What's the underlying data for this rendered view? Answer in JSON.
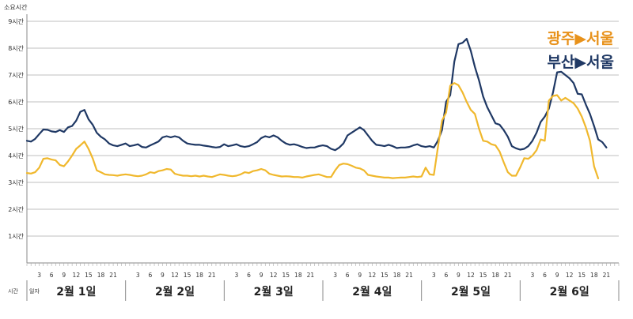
{
  "chart_data": {
    "type": "line",
    "ylabel": "소요시간",
    "y_ticks": [
      "1시간",
      "2시간",
      "3시간",
      "4시간",
      "5시간",
      "6시간",
      "7시간",
      "8시간",
      "9시간"
    ],
    "ylim": [
      0,
      9
    ],
    "row_labels": {
      "hour": "시간",
      "day": "일자"
    },
    "hour_ticks": [
      "3",
      "6",
      "9",
      "12",
      "15",
      "18",
      "21"
    ],
    "days": [
      "2월 1일",
      "2월 2일",
      "2월 3일",
      "2월 4일",
      "2월 5일",
      "2월 6일"
    ],
    "x_unit": "hours from 2월 1일 00시",
    "grid": true,
    "legend_position": "top-right",
    "series": [
      {
        "name": "부산▶서울",
        "color": "#1f3864",
        "points": [
          [
            0,
            4.55
          ],
          [
            1,
            4.52
          ],
          [
            2,
            4.62
          ],
          [
            3,
            4.8
          ],
          [
            4,
            4.97
          ],
          [
            5,
            4.96
          ],
          [
            6,
            4.9
          ],
          [
            7,
            4.88
          ],
          [
            8,
            4.95
          ],
          [
            9,
            4.88
          ],
          [
            10,
            5.05
          ],
          [
            11,
            5.1
          ],
          [
            12,
            5.3
          ],
          [
            13,
            5.63
          ],
          [
            14,
            5.7
          ],
          [
            15,
            5.35
          ],
          [
            16,
            5.15
          ],
          [
            17,
            4.85
          ],
          [
            18,
            4.7
          ],
          [
            19,
            4.6
          ],
          [
            20,
            4.45
          ],
          [
            21,
            4.38
          ],
          [
            22,
            4.35
          ],
          [
            23,
            4.4
          ],
          [
            24,
            4.45
          ],
          [
            25,
            4.35
          ],
          [
            26,
            4.38
          ],
          [
            27,
            4.42
          ],
          [
            28,
            4.32
          ],
          [
            29,
            4.3
          ],
          [
            30,
            4.38
          ],
          [
            31,
            4.45
          ],
          [
            32,
            4.52
          ],
          [
            33,
            4.68
          ],
          [
            34,
            4.72
          ],
          [
            35,
            4.68
          ],
          [
            36,
            4.72
          ],
          [
            37,
            4.68
          ],
          [
            38,
            4.55
          ],
          [
            39,
            4.45
          ],
          [
            40,
            4.42
          ],
          [
            41,
            4.4
          ],
          [
            42,
            4.4
          ],
          [
            43,
            4.37
          ],
          [
            44,
            4.35
          ],
          [
            45,
            4.32
          ],
          [
            46,
            4.3
          ],
          [
            47,
            4.32
          ],
          [
            48,
            4.42
          ],
          [
            49,
            4.35
          ],
          [
            50,
            4.38
          ],
          [
            51,
            4.42
          ],
          [
            52,
            4.35
          ],
          [
            53,
            4.32
          ],
          [
            54,
            4.35
          ],
          [
            55,
            4.42
          ],
          [
            56,
            4.5
          ],
          [
            57,
            4.65
          ],
          [
            58,
            4.72
          ],
          [
            59,
            4.68
          ],
          [
            60,
            4.75
          ],
          [
            61,
            4.68
          ],
          [
            62,
            4.55
          ],
          [
            63,
            4.45
          ],
          [
            64,
            4.4
          ],
          [
            65,
            4.42
          ],
          [
            66,
            4.38
          ],
          [
            67,
            4.32
          ],
          [
            68,
            4.28
          ],
          [
            69,
            4.3
          ],
          [
            70,
            4.3
          ],
          [
            71,
            4.35
          ],
          [
            72,
            4.38
          ],
          [
            73,
            4.35
          ],
          [
            74,
            4.25
          ],
          [
            75,
            4.2
          ],
          [
            76,
            4.3
          ],
          [
            77,
            4.45
          ],
          [
            78,
            4.75
          ],
          [
            79,
            4.85
          ],
          [
            80,
            4.95
          ],
          [
            81,
            5.05
          ],
          [
            82,
            4.95
          ],
          [
            83,
            4.75
          ],
          [
            84,
            4.55
          ],
          [
            85,
            4.4
          ],
          [
            86,
            4.38
          ],
          [
            87,
            4.35
          ],
          [
            88,
            4.4
          ],
          [
            89,
            4.35
          ],
          [
            90,
            4.28
          ],
          [
            91,
            4.3
          ],
          [
            92,
            4.3
          ],
          [
            93,
            4.32
          ],
          [
            94,
            4.38
          ],
          [
            95,
            4.42
          ],
          [
            96,
            4.35
          ],
          [
            97,
            4.32
          ],
          [
            98,
            4.35
          ],
          [
            99,
            4.3
          ],
          [
            100,
            4.55
          ],
          [
            101,
            4.95
          ],
          [
            102,
            6.0
          ],
          [
            103,
            6.25
          ],
          [
            104,
            7.5
          ],
          [
            105,
            8.15
          ],
          [
            106,
            8.2
          ],
          [
            107,
            8.35
          ],
          [
            108,
            7.9
          ],
          [
            109,
            7.3
          ],
          [
            110,
            6.8
          ],
          [
            111,
            6.2
          ],
          [
            112,
            5.8
          ],
          [
            113,
            5.5
          ],
          [
            114,
            5.2
          ],
          [
            115,
            5.15
          ],
          [
            116,
            4.95
          ],
          [
            117,
            4.7
          ],
          [
            118,
            4.35
          ],
          [
            119,
            4.27
          ],
          [
            120,
            4.22
          ],
          [
            121,
            4.25
          ],
          [
            122,
            4.35
          ],
          [
            123,
            4.55
          ],
          [
            124,
            4.85
          ],
          [
            125,
            5.25
          ],
          [
            126,
            5.45
          ],
          [
            127,
            5.75
          ],
          [
            128,
            6.35
          ],
          [
            129,
            7.1
          ],
          [
            130,
            7.12
          ],
          [
            131,
            7.0
          ],
          [
            132,
            6.88
          ],
          [
            133,
            6.7
          ],
          [
            134,
            6.3
          ],
          [
            135,
            6.28
          ],
          [
            136,
            5.9
          ],
          [
            137,
            5.55
          ],
          [
            138,
            5.1
          ],
          [
            139,
            4.6
          ],
          [
            140,
            4.5
          ],
          [
            141,
            4.3
          ]
        ]
      },
      {
        "name": "광주▶서울",
        "color": "#f0b82d",
        "points": [
          [
            0,
            3.35
          ],
          [
            1,
            3.33
          ],
          [
            2,
            3.38
          ],
          [
            3,
            3.55
          ],
          [
            4,
            3.88
          ],
          [
            5,
            3.9
          ],
          [
            6,
            3.85
          ],
          [
            7,
            3.82
          ],
          [
            8,
            3.65
          ],
          [
            9,
            3.6
          ],
          [
            10,
            3.78
          ],
          [
            11,
            4.0
          ],
          [
            12,
            4.25
          ],
          [
            13,
            4.38
          ],
          [
            14,
            4.52
          ],
          [
            15,
            4.25
          ],
          [
            16,
            3.9
          ],
          [
            17,
            3.45
          ],
          [
            18,
            3.38
          ],
          [
            19,
            3.3
          ],
          [
            20,
            3.28
          ],
          [
            21,
            3.27
          ],
          [
            22,
            3.25
          ],
          [
            23,
            3.28
          ],
          [
            24,
            3.3
          ],
          [
            25,
            3.28
          ],
          [
            26,
            3.25
          ],
          [
            27,
            3.23
          ],
          [
            28,
            3.25
          ],
          [
            29,
            3.3
          ],
          [
            30,
            3.38
          ],
          [
            31,
            3.35
          ],
          [
            32,
            3.42
          ],
          [
            33,
            3.45
          ],
          [
            34,
            3.5
          ],
          [
            35,
            3.48
          ],
          [
            36,
            3.32
          ],
          [
            37,
            3.28
          ],
          [
            38,
            3.25
          ],
          [
            39,
            3.25
          ],
          [
            40,
            3.23
          ],
          [
            41,
            3.25
          ],
          [
            42,
            3.22
          ],
          [
            43,
            3.25
          ],
          [
            44,
            3.22
          ],
          [
            45,
            3.2
          ],
          [
            46,
            3.25
          ],
          [
            47,
            3.3
          ],
          [
            48,
            3.28
          ],
          [
            49,
            3.25
          ],
          [
            50,
            3.23
          ],
          [
            51,
            3.25
          ],
          [
            52,
            3.3
          ],
          [
            53,
            3.38
          ],
          [
            54,
            3.35
          ],
          [
            55,
            3.42
          ],
          [
            56,
            3.45
          ],
          [
            57,
            3.5
          ],
          [
            58,
            3.45
          ],
          [
            59,
            3.32
          ],
          [
            60,
            3.28
          ],
          [
            61,
            3.25
          ],
          [
            62,
            3.22
          ],
          [
            63,
            3.23
          ],
          [
            64,
            3.22
          ],
          [
            65,
            3.2
          ],
          [
            66,
            3.2
          ],
          [
            67,
            3.18
          ],
          [
            68,
            3.22
          ],
          [
            69,
            3.25
          ],
          [
            70,
            3.28
          ],
          [
            71,
            3.3
          ],
          [
            72,
            3.25
          ],
          [
            73,
            3.2
          ],
          [
            74,
            3.2
          ],
          [
            75,
            3.45
          ],
          [
            76,
            3.65
          ],
          [
            77,
            3.7
          ],
          [
            78,
            3.68
          ],
          [
            79,
            3.62
          ],
          [
            80,
            3.55
          ],
          [
            81,
            3.52
          ],
          [
            82,
            3.45
          ],
          [
            83,
            3.28
          ],
          [
            84,
            3.25
          ],
          [
            85,
            3.22
          ],
          [
            86,
            3.2
          ],
          [
            87,
            3.18
          ],
          [
            88,
            3.18
          ],
          [
            89,
            3.16
          ],
          [
            90,
            3.17
          ],
          [
            91,
            3.18
          ],
          [
            92,
            3.18
          ],
          [
            93,
            3.2
          ],
          [
            94,
            3.22
          ],
          [
            95,
            3.2
          ],
          [
            96,
            3.22
          ],
          [
            97,
            3.55
          ],
          [
            98,
            3.3
          ],
          [
            99,
            3.28
          ],
          [
            100,
            4.3
          ],
          [
            101,
            5.3
          ],
          [
            102,
            5.6
          ],
          [
            103,
            6.6
          ],
          [
            104,
            6.7
          ],
          [
            105,
            6.62
          ],
          [
            106,
            6.35
          ],
          [
            107,
            6.0
          ],
          [
            108,
            5.7
          ],
          [
            109,
            5.55
          ],
          [
            110,
            5.0
          ],
          [
            111,
            4.55
          ],
          [
            112,
            4.52
          ],
          [
            113,
            4.42
          ],
          [
            114,
            4.38
          ],
          [
            115,
            4.15
          ],
          [
            116,
            3.75
          ],
          [
            117,
            3.38
          ],
          [
            118,
            3.25
          ],
          [
            119,
            3.25
          ],
          [
            120,
            3.55
          ],
          [
            121,
            3.9
          ],
          [
            122,
            3.88
          ],
          [
            123,
            4.0
          ],
          [
            124,
            4.2
          ],
          [
            125,
            4.6
          ],
          [
            126,
            4.55
          ],
          [
            127,
            6.05
          ],
          [
            128,
            6.22
          ],
          [
            129,
            6.25
          ],
          [
            130,
            6.05
          ],
          [
            131,
            6.15
          ],
          [
            132,
            6.05
          ],
          [
            133,
            5.95
          ],
          [
            134,
            5.75
          ],
          [
            135,
            5.45
          ],
          [
            136,
            5.05
          ],
          [
            137,
            4.55
          ],
          [
            138,
            3.6
          ],
          [
            139,
            3.15
          ]
        ]
      }
    ]
  }
}
